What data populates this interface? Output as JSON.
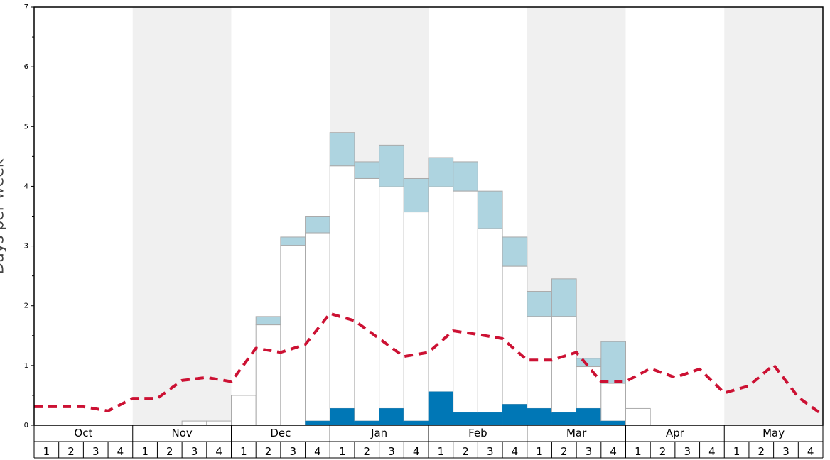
{
  "chart_data": {
    "type": "bar",
    "ylabel": "Days per week",
    "ylim": [
      0,
      7
    ],
    "y_ticks": [
      0,
      1,
      2,
      3,
      4,
      5,
      6,
      7
    ],
    "months": [
      "Oct",
      "Nov",
      "Dec",
      "Jan",
      "Feb",
      "Mar",
      "Apr",
      "May"
    ],
    "week_labels": [
      "1",
      "2",
      "3",
      "4"
    ],
    "colors": {
      "shade": "#f0f0f0",
      "light_blue": "#aed4e0",
      "dark_blue": "#0077b6",
      "bar_fill": "#ffffff",
      "bar_stroke": "#aaaaaa",
      "dashed_line": "#cc1133"
    },
    "series": [
      {
        "name": "dark",
        "values": [
          0,
          0,
          0,
          0,
          0,
          0,
          0,
          0,
          0,
          0,
          0,
          0.07,
          0.28,
          0.07,
          0.28,
          0.07,
          0.56,
          0.21,
          0.21,
          0.35,
          0.28,
          0.21,
          0.28,
          0.07,
          0,
          0,
          0,
          0,
          0,
          0,
          0,
          0
        ]
      },
      {
        "name": "white_top",
        "values": [
          0,
          0,
          0,
          0,
          0,
          0,
          0.07,
          0.07,
          0.5,
          1.68,
          3.01,
          3.22,
          4.34,
          4.13,
          3.99,
          3.57,
          3.99,
          3.92,
          3.29,
          2.66,
          1.82,
          1.82,
          0.98,
          0.7,
          0.28,
          0,
          0,
          0,
          0,
          0,
          0,
          0
        ]
      },
      {
        "name": "light_top",
        "values": [
          0,
          0,
          0,
          0,
          0,
          0,
          0.07,
          0.07,
          0.5,
          1.82,
          3.15,
          3.5,
          4.9,
          4.41,
          4.69,
          4.13,
          4.48,
          4.41,
          3.92,
          3.15,
          2.24,
          2.45,
          1.12,
          1.4,
          0.28,
          0,
          0,
          0,
          0,
          0,
          0,
          0
        ]
      },
      {
        "name": "average",
        "values": [
          0.31,
          0.31,
          0.31,
          0.24,
          0.45,
          0.45,
          0.75,
          0.8,
          0.73,
          1.29,
          1.22,
          1.35,
          1.87,
          1.75,
          1.45,
          1.15,
          1.22,
          1.58,
          1.52,
          1.45,
          1.09,
          1.09,
          1.22,
          0.73,
          0.73,
          0.95,
          0.8,
          0.94,
          0.54,
          0.66,
          1.01,
          0.47,
          0.17
        ]
      }
    ]
  }
}
